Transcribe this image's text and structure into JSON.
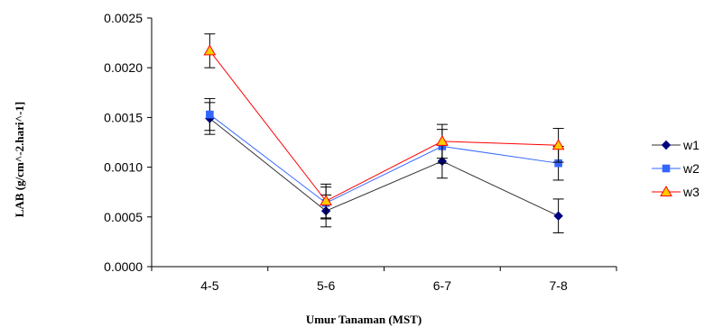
{
  "chart_data": {
    "type": "line",
    "title": "",
    "xlabel": "Umur Tanaman (MST)",
    "ylabel": "LAB (g/cm^-2.hari^-1]",
    "categories": [
      "4-5",
      "5-6",
      "6-7",
      "7-8"
    ],
    "ylim": [
      0,
      0.0025
    ],
    "yticks": [
      "0.0000",
      "0.0005",
      "0.0010",
      "0.0015",
      "0.0020",
      "0.0025"
    ],
    "grid": false,
    "legend_position": "right",
    "series": [
      {
        "name": "w1",
        "values": [
          0.00149,
          0.00056,
          0.00106,
          0.00051
        ],
        "errors": [
          0.00016,
          0.00016,
          0.00017,
          0.00017
        ],
        "color": "#000080",
        "line_color": "#333333",
        "marker": "diamond"
      },
      {
        "name": "w2",
        "values": [
          0.00153,
          0.00064,
          0.00121,
          0.00104
        ],
        "errors": [
          0.00016,
          0.00016,
          0.00017,
          0.00017
        ],
        "color": "#3366FF",
        "line_color": "#3366FF",
        "marker": "square"
      },
      {
        "name": "w3",
        "values": [
          0.00217,
          0.00066,
          0.00126,
          0.00122
        ],
        "errors": [
          0.00017,
          0.00017,
          0.00017,
          0.00017
        ],
        "color": "#FFCC00",
        "line_color": "#FF0000",
        "marker": "triangle"
      }
    ]
  }
}
